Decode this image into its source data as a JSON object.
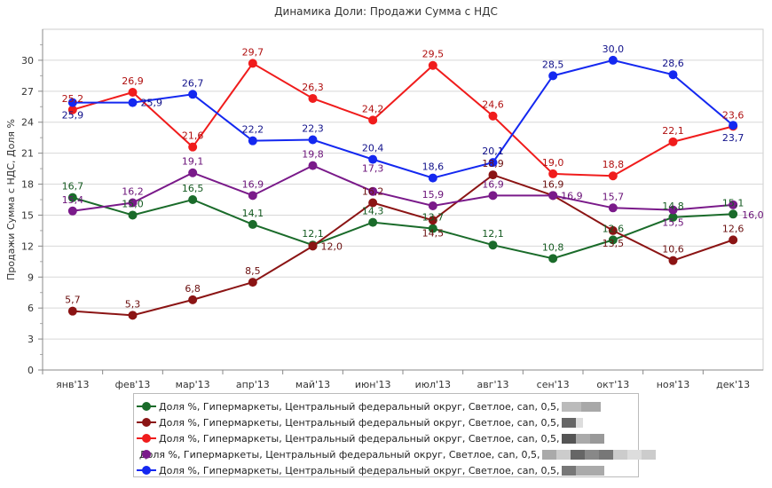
{
  "chart_data": {
    "type": "line",
    "title": "Динамика Доли: Продажи Сумма с НДС",
    "ylabel": "Продажи Сумма с НДС, Доля %",
    "xlabel": "",
    "ylim": [
      0,
      33
    ],
    "yticks": [
      0,
      3,
      6,
      9,
      12,
      15,
      18,
      21,
      24,
      27,
      30
    ],
    "grid": true,
    "legend": "bottom",
    "categories": [
      "янв'13",
      "фев'13",
      "мар'13",
      "апр'13",
      "май'13",
      "июн'13",
      "июл'13",
      "авг'13",
      "сен'13",
      "окт'13",
      "ноя'13",
      "дек'13"
    ],
    "series": [
      {
        "name": "Доля %, Гипермаркеты, Центральный федеральный округ, Светлое, can, 0,5,",
        "color": "#1a6b2a",
        "label_color": "#145a20",
        "values": [
          16.7,
          15.0,
          16.5,
          14.1,
          12.1,
          14.3,
          13.7,
          12.1,
          10.8,
          12.6,
          14.8,
          15.1
        ]
      },
      {
        "name": "Доля %, Гипермаркеты, Центральный федеральный округ, Светлое, can, 0,5,",
        "color": "#8b1414",
        "label_color": "#6b0f0f",
        "values": [
          5.7,
          5.3,
          6.8,
          8.5,
          12.0,
          16.2,
          14.5,
          18.9,
          16.9,
          13.5,
          10.6,
          12.6
        ]
      },
      {
        "name": "Доля %, Гипермаркеты, Центральный федеральный округ, Светлое, can, 0,5,",
        "color": "#f01c1c",
        "label_color": "#b01010",
        "values": [
          25.2,
          26.9,
          21.6,
          29.7,
          26.3,
          24.2,
          29.5,
          24.6,
          19.0,
          18.8,
          22.1,
          23.6
        ]
      },
      {
        "name": "Доля %, Гипермаркеты, Центральный федеральный округ, Светлое, can, 0,5,",
        "color": "#7a1a8a",
        "label_color": "#6a1278",
        "values": [
          15.4,
          16.2,
          19.1,
          16.9,
          19.8,
          17.3,
          15.9,
          16.9,
          16.9,
          15.7,
          15.5,
          16.0
        ]
      },
      {
        "name": "Доля %, Гипермаркеты, Центральный федеральный округ, Светлое, can, 0,5,",
        "color": "#1428f0",
        "label_color": "#10108a",
        "values": [
          25.9,
          25.9,
          26.7,
          22.2,
          22.3,
          20.4,
          18.6,
          20.1,
          28.5,
          30.0,
          28.6,
          23.7
        ]
      }
    ]
  }
}
